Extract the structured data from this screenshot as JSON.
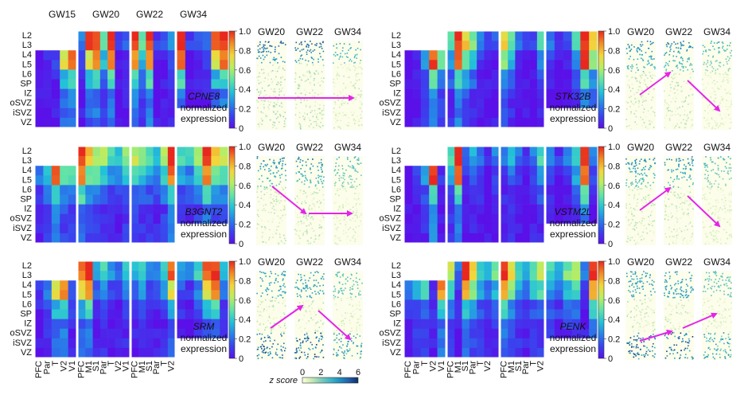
{
  "colors": {
    "arrow": "#e524e8",
    "border": "#ffffff",
    "heat_stops": [
      "#5a10e8",
      "#3b42ee",
      "#2783e8",
      "#24c2d8",
      "#63e3a6",
      "#b9ee63",
      "#f2d63c",
      "#f28b25",
      "#e8281e"
    ],
    "zscore_stops": [
      "#ffffd9",
      "#c8e9b4",
      "#7fccbb",
      "#41b6c4",
      "#1e91c0",
      "#225ea8",
      "#08306b"
    ]
  },
  "row_labels": [
    "L2",
    "L3",
    "L4",
    "L5",
    "L6",
    "SP",
    "IZ",
    "oSVZ",
    "iSVZ",
    "VZ"
  ],
  "colorbar_ticks": [
    "0",
    "0.2",
    "0.4",
    "0.6",
    "0.8",
    "1.0"
  ],
  "zscore": {
    "label": "z score",
    "ticks": [
      "0",
      "2",
      "4",
      "6"
    ]
  },
  "left_group_headers": [
    "GW15",
    "GW20",
    "GW22",
    "GW34"
  ],
  "right_group_headers": [],
  "sample_headers": [
    "GW20",
    "GW22",
    "GW34"
  ],
  "left_xaxis": {
    "GW15": [
      "PFC",
      "Par",
      "T",
      "V2",
      "V1"
    ],
    "GW20": [
      "PFC",
      "M1",
      "S1",
      "Par",
      "T",
      "V2",
      "V1"
    ],
    "GW22": [
      "PFC",
      "M1",
      "S1",
      "Par",
      "T",
      "V2"
    ],
    "GW34": []
  },
  "right_xaxis": {
    "GW15": [
      "PFC",
      "Par",
      "T",
      "V2",
      "V1"
    ],
    "GW20": [
      "PFC",
      "M1",
      "S1",
      "Par",
      "T",
      "V2"
    ],
    "GW22": [
      "PFC",
      "M1",
      "S1",
      "Par",
      "T",
      "V2"
    ],
    "GW34": []
  },
  "panels": [
    {
      "gene": "CPNE8",
      "label_line2": "normalized",
      "label_line3": "expression",
      "columns": 8,
      "upper_layers": 0.48,
      "heat": [
        0.0,
        0.05,
        0.12,
        0.7,
        0.9,
        0.35,
        0.9
      ],
      "zscore_profile": "top"
    },
    {
      "gene": "STK32B",
      "label_line2": "normalized",
      "label_line3": "expression",
      "columns": 8,
      "upper_layers": 0.48,
      "heat": [
        0.0,
        0.04,
        0.3,
        0.95,
        0.55,
        0.35,
        0.1
      ],
      "zscore_profile": "fade"
    },
    {
      "gene": "B3GNT2",
      "label_line2": "normalized",
      "label_line3": "expression",
      "columns": 8,
      "upper_layers": 0.48,
      "heat": [
        0.25,
        0.4,
        0.9,
        0.55,
        0.45,
        0.4,
        0.3
      ],
      "zscore_profile": "fade"
    },
    {
      "gene": "VSTM2L",
      "label_line2": "normalized",
      "label_line3": "expression",
      "columns": 8,
      "upper_layers": 0.48,
      "heat": [
        0.0,
        0.12,
        0.3,
        0.95,
        0.1,
        0.2,
        0.1
      ],
      "zscore_profile": "fade"
    },
    {
      "gene": "SRM",
      "label_line2": "normalized",
      "label_line3": "expression",
      "columns": 8,
      "upper_layers": 0.48,
      "heat": [
        0.1,
        0.25,
        0.7,
        0.9,
        0.2,
        0.3,
        0.15
      ],
      "zscore_profile": "bottom"
    },
    {
      "gene": "PENK",
      "label_line2": "normalized",
      "label_line3": "expression",
      "columns": 8,
      "upper_layers": 0.48,
      "heat": [
        0.2,
        0.35,
        0.45,
        0.1,
        0.85,
        0.55,
        0.3
      ],
      "zscore_profile": "bottom"
    }
  ]
}
